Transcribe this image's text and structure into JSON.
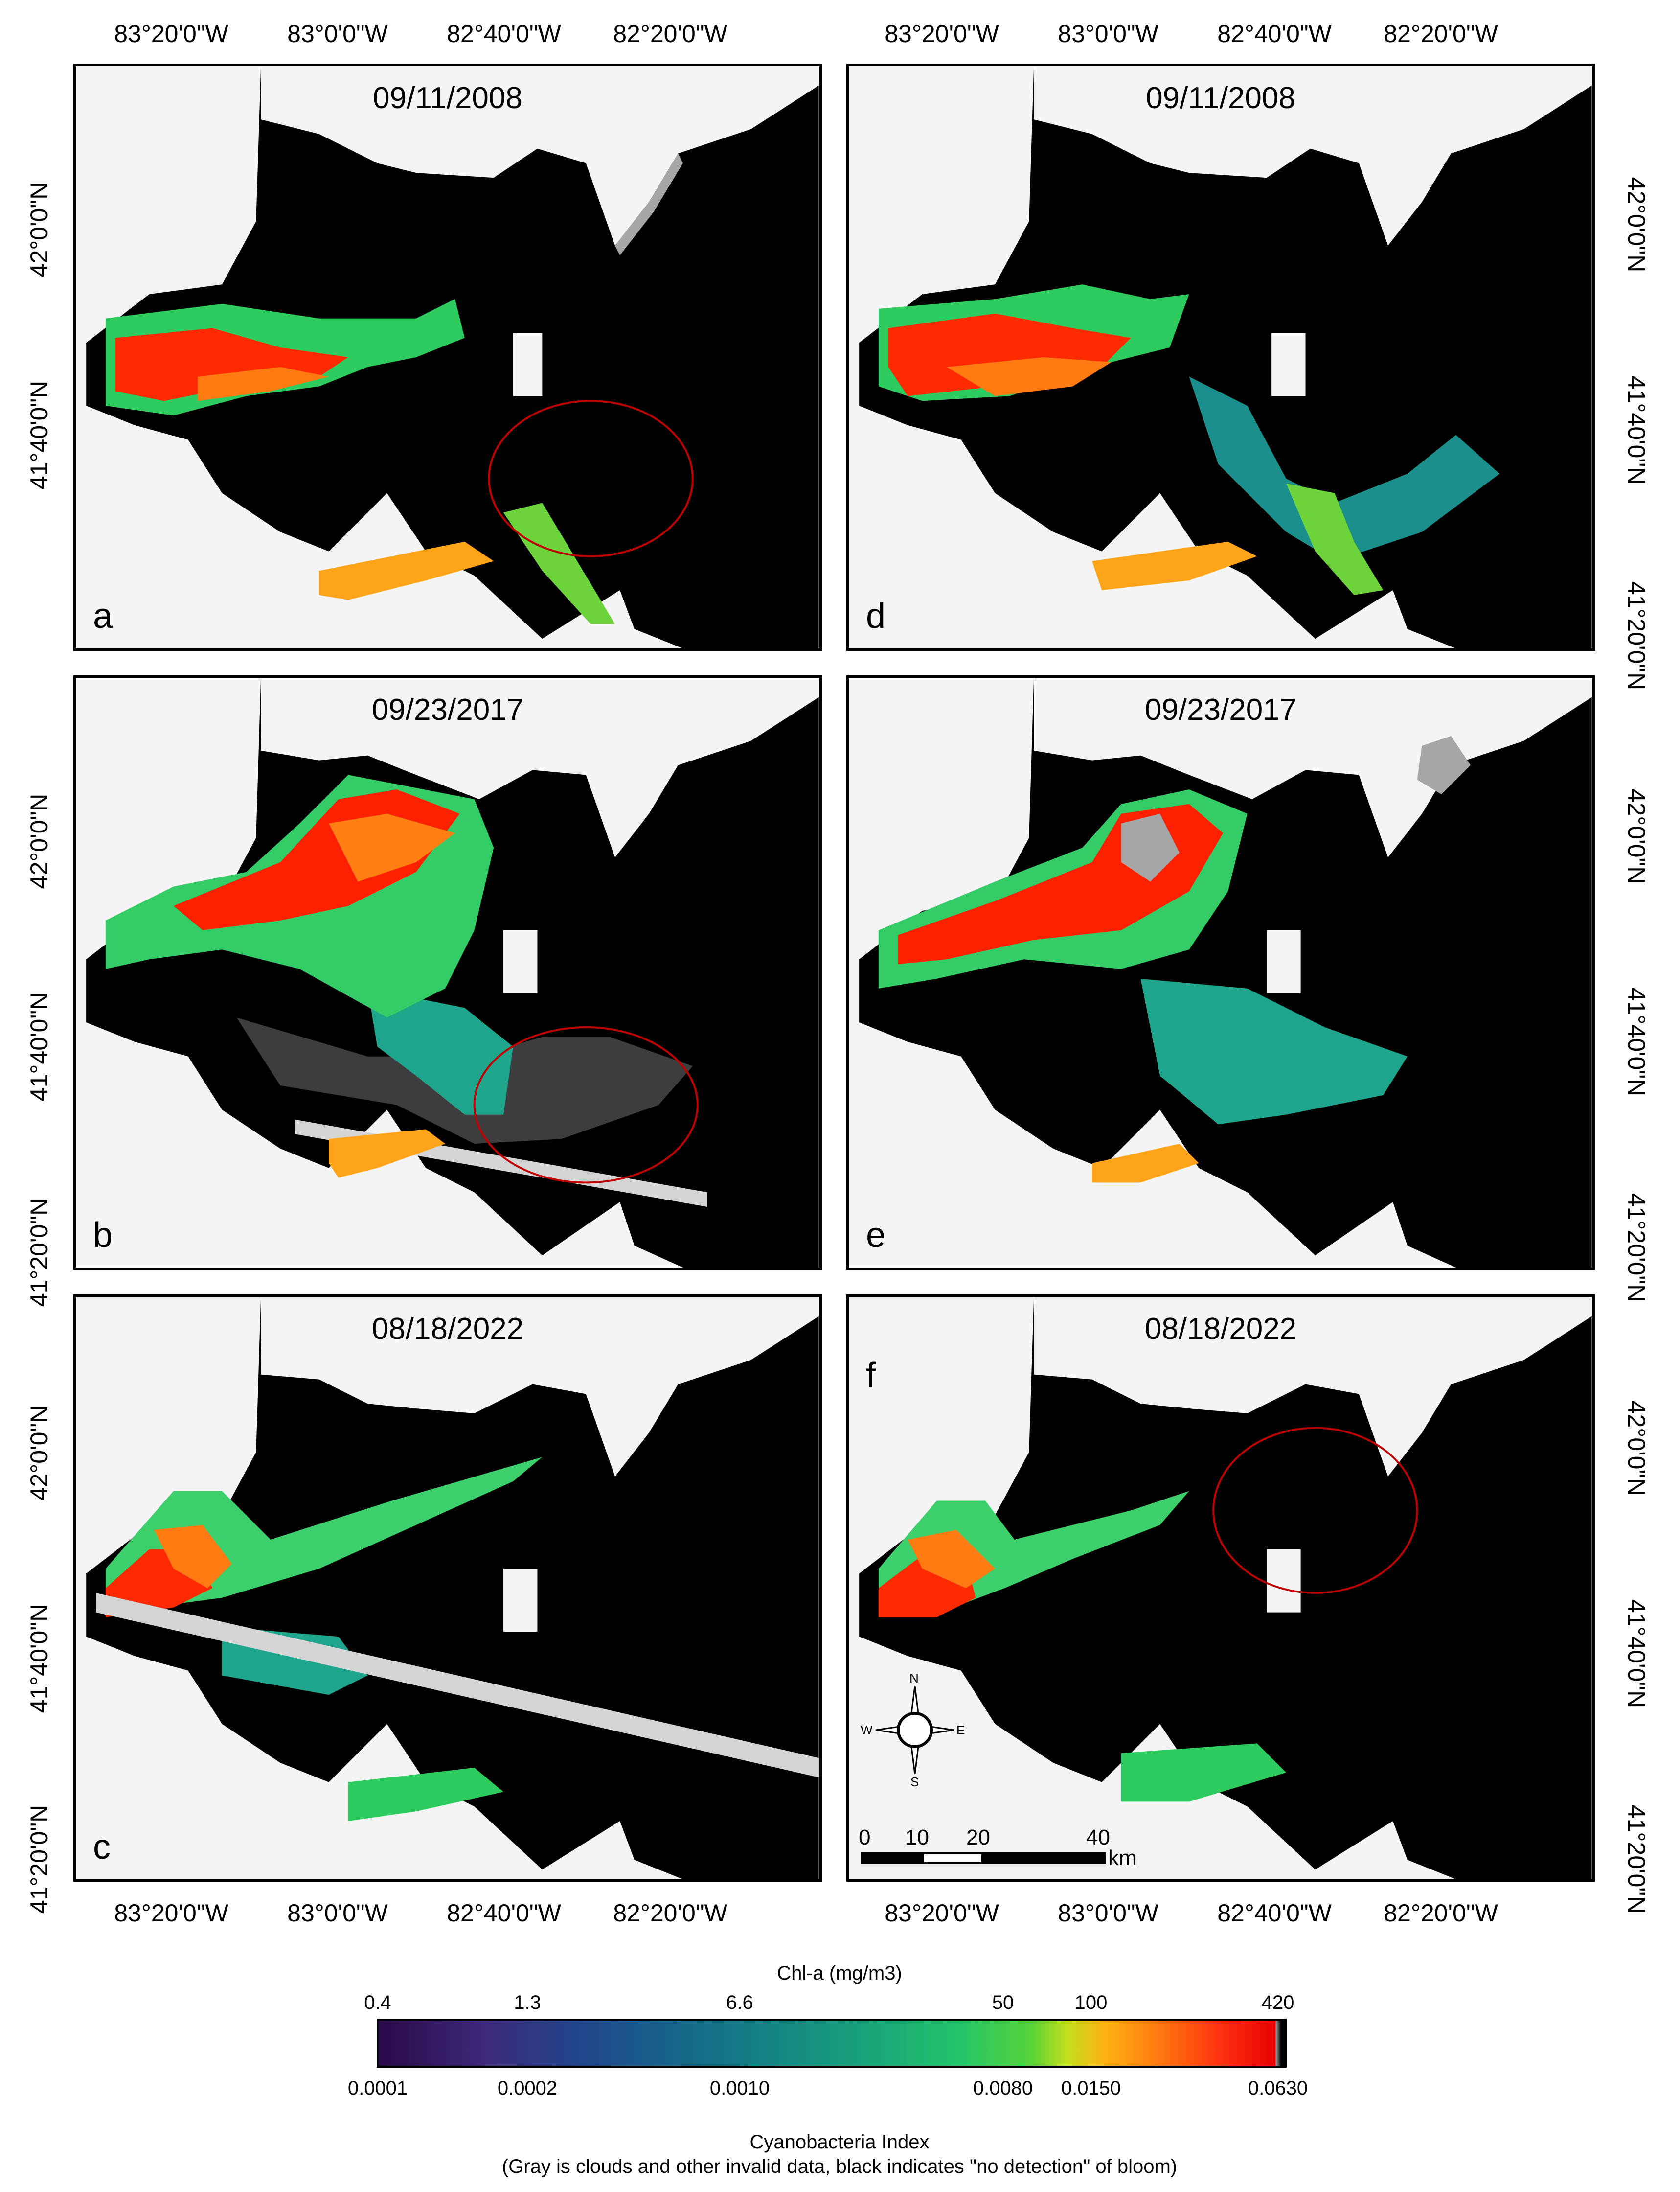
{
  "panels": [
    {
      "letter": "a",
      "date": "09/11/2008"
    },
    {
      "letter": "b",
      "date": "09/23/2017"
    },
    {
      "letter": "c",
      "date": "08/18/2022"
    },
    {
      "letter": "d",
      "date": "09/11/2008"
    },
    {
      "letter": "e",
      "date": "09/23/2017"
    },
    {
      "letter": "f",
      "date": "08/18/2022"
    }
  ],
  "longitude_labels": [
    "83°20'0\"W",
    "83°0'0\"W",
    "82°40'0\"W",
    "82°20'0\"W"
  ],
  "latitude_labels": [
    "42°0'0\"N",
    "41°40'0\"N",
    "41°20'0\"N"
  ],
  "compass": {
    "n": "N",
    "s": "S",
    "e": "E",
    "w": "W"
  },
  "scale_bar": {
    "ticks": [
      "0",
      "10",
      "20",
      "40"
    ],
    "unit": "km"
  },
  "colorbar": {
    "top_title": "Chl-a (mg/m3)",
    "top_ticks": [
      "0.4",
      "1.3",
      "6.6",
      "50",
      "100",
      "420"
    ],
    "bottom_ticks": [
      "0.0001",
      "0.0002",
      "0.0010",
      "0.0080",
      "0.0150",
      "0.0630"
    ],
    "bottom_title": "Cyanobacteria Index",
    "note": "(Gray is clouds and other invalid data, black indicates \"no detection\" of bloom)"
  },
  "colors": {
    "land": "#f4f4f4",
    "water": "#000000",
    "invalid": "#a6a6a6",
    "annotation_circle": "#c00000"
  }
}
